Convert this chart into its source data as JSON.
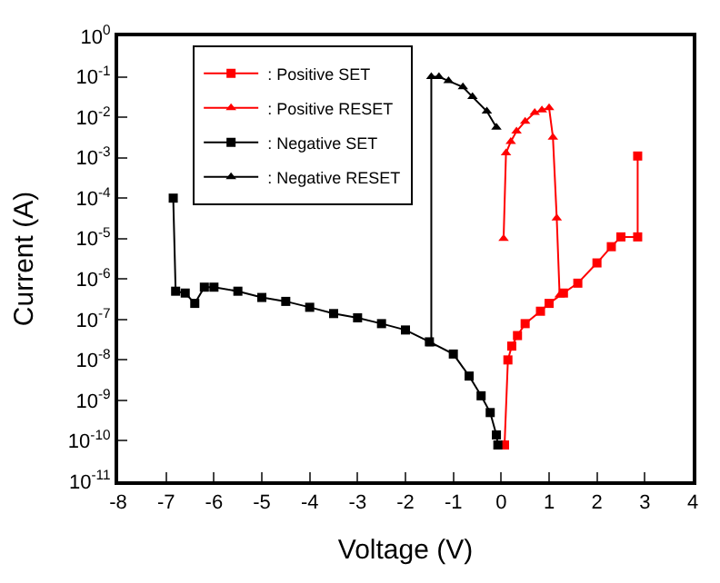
{
  "chart_data": {
    "type": "line",
    "xlabel": "Voltage (V)",
    "ylabel": "Current (A)",
    "log": "y",
    "legend": "top left",
    "line_style": "solid",
    "xlim": [
      -8,
      4
    ],
    "xticks": [
      -8,
      -7,
      -6,
      -5,
      -4,
      -3,
      -2,
      -1,
      0,
      1,
      2,
      3,
      4
    ],
    "ylim": [
      1e-11,
      1
    ],
    "yticks": [
      {
        "value": 1e-11,
        "label": "10$^{-11}$"
      },
      {
        "value": 1e-10,
        "label": "10$^{-10}$"
      },
      {
        "value": 1e-09,
        "label": "10$^{-9}$"
      },
      {
        "value": 1e-08,
        "label": "10$^{-8}$"
      },
      {
        "value": 1e-07,
        "label": "10$^{-7}$"
      },
      {
        "value": 1e-06,
        "label": "10$^{-6}$"
      },
      {
        "value": 1e-05,
        "label": "10$^{-5}$"
      },
      {
        "value": 0.0001,
        "label": "10$^{-4}$"
      },
      {
        "value": 0.001,
        "label": "10$^{-3}$"
      },
      {
        "value": 0.01,
        "label": "10$^{-2}$"
      },
      {
        "value": 0.1,
        "label": "10$^{-1}$"
      },
      {
        "value": 1,
        "label": "10$^{0}$"
      }
    ],
    "series": [
      {
        "name": ": Positive SET",
        "color": "#ff0000",
        "marker": "square",
        "x": [
          0.07,
          0.14,
          0.22,
          0.34,
          0.5,
          0.82,
          1.0,
          1.3,
          1.6,
          2.0,
          2.3,
          2.5,
          2.85,
          2.85
        ],
        "values": [
          7.9e-11,
          1e-08,
          2.2e-08,
          4e-08,
          7.9e-08,
          1.6e-07,
          2.5e-07,
          4.5e-07,
          7.9e-07,
          2.5e-06,
          6.3e-06,
          1.1e-05,
          1.1e-05,
          0.0011
        ]
      },
      {
        "name": ": Positive RESET",
        "color": "#ff0000",
        "marker": "triangle",
        "x": [
          0.05,
          0.1,
          0.2,
          0.32,
          0.5,
          0.7,
          0.85,
          1.0,
          1.08,
          1.16,
          1.22
        ],
        "values": [
          1e-05,
          0.0013,
          0.0025,
          0.0045,
          0.0079,
          0.013,
          0.015,
          0.017,
          0.0032,
          3.2e-05,
          4e-07
        ]
      },
      {
        "name": ": Negative SET",
        "color": "#000000",
        "marker": "square",
        "x": [
          -0.07,
          -0.1,
          -0.23,
          -0.42,
          -0.67,
          -1.0,
          -1.5,
          -2,
          -2.5,
          -3,
          -3.5,
          -4,
          -4.5,
          -5,
          -5.5,
          -6,
          -6.2,
          -6.4,
          -6.6,
          -6.8,
          -6.85
        ],
        "values": [
          7.9e-11,
          1.4e-10,
          5e-10,
          1.3e-09,
          4e-09,
          1.4e-08,
          2.8e-08,
          5.5e-08,
          7.9e-08,
          1.1e-07,
          1.4e-07,
          2e-07,
          2.8e-07,
          3.5e-07,
          5e-07,
          6.3e-07,
          6.3e-07,
          2.5e-07,
          4.5e-07,
          5e-07,
          0.0001
        ]
      },
      {
        "name": ": Negative RESET",
        "color": "#000000",
        "marker": "triangle",
        "x": [
          -1.46,
          -1.46,
          -1.3,
          -1.1,
          -0.8,
          -0.6,
          -0.3,
          -0.1
        ],
        "values": [
          2.5e-08,
          0.1,
          0.1,
          0.079,
          0.056,
          0.032,
          0.014,
          0.0056
        ]
      }
    ]
  }
}
